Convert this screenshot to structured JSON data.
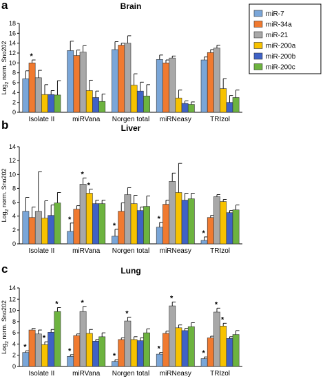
{
  "legend": {
    "position": "top-right",
    "entries": [
      {
        "label": "miR-7",
        "color": "#7AA6D8"
      },
      {
        "label": "miR-34a",
        "color": "#F07A30"
      },
      {
        "label": "miR-21",
        "color": "#A8A8A8"
      },
      {
        "label": "miR-200a",
        "color": "#F7C200"
      },
      {
        "label": "miR-200b",
        "color": "#3F62C6"
      },
      {
        "label": "miR-200c",
        "color": "#6DB33F"
      }
    ]
  },
  "chart_data": [
    {
      "type": "bar",
      "panel_letter": "a",
      "title": "Brain",
      "ylabel_prefix": "Log",
      "ylabel_sub": "2",
      "ylabel_suffix": " norm. Sno202",
      "ylim": [
        0,
        18
      ],
      "yticks": [
        0,
        2,
        4,
        6,
        8,
        10,
        12,
        14,
        16,
        18
      ],
      "grid": false,
      "categories": [
        "Isolate II",
        "miRVana",
        "Norgen total",
        "miRNeasy",
        "TRIzol"
      ],
      "series": [
        {
          "name": "miR-7",
          "values": [
            6.8,
            12.5,
            12.7,
            10.7,
            10.6
          ],
          "errors": [
            1.6,
            1.9,
            1.6,
            0.9,
            0.6
          ],
          "stars": [
            false,
            false,
            false,
            false,
            false
          ]
        },
        {
          "name": "miR-34a",
          "values": [
            10.0,
            11.5,
            13.6,
            10.0,
            12.1
          ],
          "errors": [
            0.6,
            1.1,
            0.4,
            0.6,
            0.6
          ],
          "stars": [
            true,
            false,
            false,
            false,
            false
          ]
        },
        {
          "name": "miR-21",
          "values": [
            7.0,
            12.2,
            14.0,
            11.0,
            13.0
          ],
          "errors": [
            1.5,
            1.3,
            1.5,
            0.4,
            0.6
          ],
          "stars": [
            false,
            false,
            false,
            false,
            false
          ]
        },
        {
          "name": "miR-200a",
          "values": [
            3.6,
            4.4,
            5.5,
            2.9,
            4.8
          ],
          "errors": [
            2.0,
            2.1,
            2.3,
            1.6,
            2.0
          ],
          "stars": [
            false,
            false,
            false,
            false,
            false
          ]
        },
        {
          "name": "miR-200b",
          "values": [
            3.6,
            3.0,
            4.3,
            1.8,
            2.0
          ],
          "errors": [
            0.8,
            1.3,
            1.8,
            0.5,
            1.4
          ],
          "stars": [
            false,
            false,
            false,
            false,
            false
          ]
        },
        {
          "name": "miR-200c",
          "values": [
            3.5,
            2.2,
            3.3,
            1.6,
            3.0
          ],
          "errors": [
            2.9,
            1.5,
            2.3,
            0.5,
            1.5
          ],
          "stars": [
            false,
            false,
            false,
            false,
            false
          ]
        }
      ]
    },
    {
      "type": "bar",
      "panel_letter": "b",
      "title": "Liver",
      "ylabel_prefix": "Log",
      "ylabel_sub": "2",
      "ylabel_suffix": " norm. Sno202",
      "ylim": [
        0,
        14
      ],
      "yticks": [
        0,
        2,
        4,
        6,
        8,
        10,
        12,
        14
      ],
      "grid": false,
      "categories": [
        "Isolate II",
        "miRVana",
        "Norgen total",
        "miRNeasy",
        "TRIzol"
      ],
      "series": [
        {
          "name": "miR-7",
          "values": [
            4.7,
            1.8,
            1.1,
            2.4,
            0.5
          ],
          "errors": [
            2.0,
            1.2,
            1.0,
            0.7,
            0.5
          ],
          "stars": [
            false,
            true,
            true,
            true,
            true
          ]
        },
        {
          "name": "miR-34a",
          "values": [
            3.8,
            5.0,
            4.7,
            5.7,
            3.8
          ],
          "errors": [
            1.5,
            0.5,
            1.2,
            0.6,
            0.3
          ],
          "stars": [
            false,
            false,
            false,
            false,
            false
          ]
        },
        {
          "name": "miR-21",
          "values": [
            4.7,
            8.6,
            7.1,
            9.0,
            6.8
          ],
          "errors": [
            5.7,
            0.9,
            1.0,
            1.2,
            0.3
          ],
          "stars": [
            false,
            true,
            false,
            false,
            false
          ]
        },
        {
          "name": "miR-200a",
          "values": [
            3.7,
            7.3,
            5.8,
            7.4,
            6.1
          ],
          "errors": [
            2.5,
            0.6,
            1.2,
            4.2,
            0.3
          ],
          "stars": [
            false,
            true,
            false,
            false,
            false
          ]
        },
        {
          "name": "miR-200b",
          "values": [
            4.1,
            5.8,
            4.8,
            6.3,
            4.5
          ],
          "errors": [
            1.5,
            0.5,
            0.5,
            1.0,
            0.3
          ],
          "stars": [
            false,
            false,
            false,
            false,
            false
          ]
        },
        {
          "name": "miR-200c",
          "values": [
            5.9,
            5.8,
            5.4,
            6.5,
            4.9
          ],
          "errors": [
            1.5,
            0.5,
            1.5,
            0.8,
            0.7
          ],
          "stars": [
            false,
            false,
            false,
            false,
            false
          ]
        }
      ]
    },
    {
      "type": "bar",
      "panel_letter": "c",
      "title": "Lung",
      "ylabel_prefix": "Log",
      "ylabel_sub": "2",
      "ylabel_suffix": " norm. Sno202",
      "ylim": [
        0,
        14
      ],
      "yticks": [
        0,
        2,
        4,
        6,
        8,
        10,
        12,
        14
      ],
      "grid": false,
      "categories": [
        "Isolate II",
        "miRVana",
        "Norgen total",
        "miRNeasy",
        "TRIzol"
      ],
      "series": [
        {
          "name": "miR-7",
          "values": [
            2.5,
            1.8,
            0.9,
            2.2,
            1.4
          ],
          "errors": [
            0.3,
            0.3,
            0.3,
            0.3,
            0.3
          ],
          "stars": [
            true,
            true,
            true,
            true,
            true
          ]
        },
        {
          "name": "miR-34a",
          "values": [
            6.5,
            5.5,
            4.8,
            5.9,
            5.1
          ],
          "errors": [
            0.3,
            0.3,
            0.3,
            0.4,
            0.3
          ],
          "stars": [
            false,
            false,
            false,
            false,
            false
          ]
        },
        {
          "name": "miR-21",
          "values": [
            5.8,
            9.8,
            8.1,
            10.8,
            9.7
          ],
          "errors": [
            0.7,
            0.9,
            0.7,
            0.7,
            0.7
          ],
          "stars": [
            false,
            true,
            true,
            true,
            true
          ]
        },
        {
          "name": "miR-200a",
          "values": [
            3.9,
            5.9,
            4.8,
            6.9,
            7.2
          ],
          "errors": [
            0.5,
            0.7,
            0.5,
            0.5,
            0.5
          ],
          "stars": [
            true,
            false,
            false,
            false,
            true
          ]
        },
        {
          "name": "miR-200b",
          "values": [
            6.1,
            4.5,
            4.6,
            6.4,
            5.0
          ],
          "errors": [
            0.5,
            0.3,
            0.5,
            0.4,
            0.3
          ],
          "stars": [
            false,
            false,
            false,
            false,
            false
          ]
        },
        {
          "name": "miR-200c",
          "values": [
            9.8,
            5.3,
            6.0,
            7.1,
            5.7
          ],
          "errors": [
            0.7,
            0.7,
            0.7,
            0.7,
            0.7
          ],
          "stars": [
            true,
            false,
            false,
            false,
            false
          ]
        }
      ]
    }
  ]
}
